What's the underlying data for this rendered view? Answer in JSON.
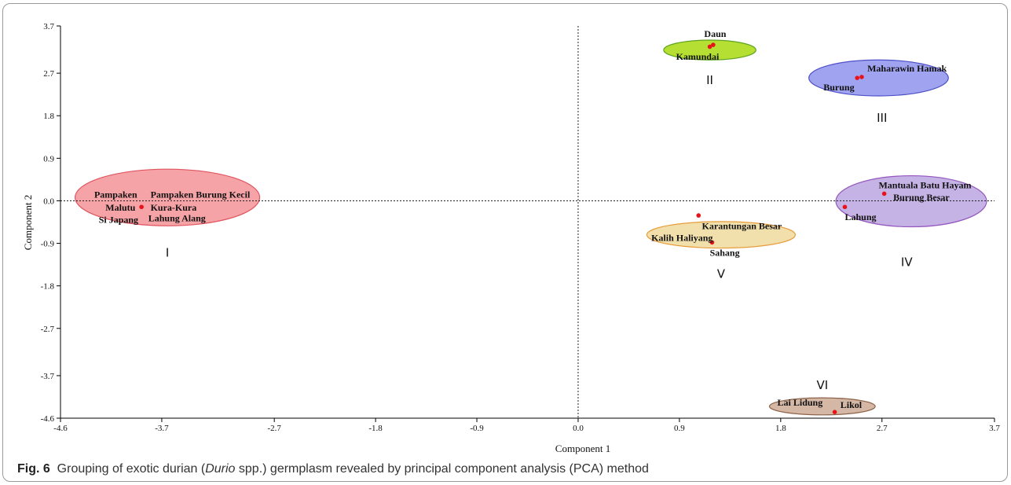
{
  "caption": {
    "fig": "Fig. 6",
    "text_before": "Grouping of exotic durian (",
    "italic": "Durio",
    "text_after": " spp.) germplasm revealed by principal component analysis (PCA) method"
  },
  "chart_data": {
    "type": "scatter",
    "xlabel": "Component 1",
    "ylabel": "Component 2",
    "xlim": [
      -4.6,
      3.7
    ],
    "ylim": [
      -4.6,
      3.7
    ],
    "x_ticks": [
      "-4.6",
      "-3.7",
      "-2.7",
      "-1.8",
      "-0.9",
      "0.0",
      "0.9",
      "1.8",
      "2.7",
      "3.7"
    ],
    "y_ticks": [
      "3.7",
      "2.7",
      "1.8",
      "0.9",
      "0.0",
      "-0.9",
      "-1.8",
      "-2.7",
      "-3.7",
      "-4.6"
    ],
    "zero_lines": "dashed",
    "point_color": "#e8121a",
    "groups": [
      {
        "name": "I",
        "center": [
          -3.65,
          0.07
        ],
        "radius": [
          0.82,
          0.6
        ],
        "fill": "#f5a3a6",
        "stroke": "#e05560",
        "label_at": [
          -3.65,
          -1.1
        ]
      },
      {
        "name": "II",
        "center": [
          1.17,
          3.19
        ],
        "radius": [
          0.41,
          0.21
        ],
        "fill": "#b5e033",
        "stroke": "#5fa320",
        "label_at": [
          1.17,
          2.55
        ]
      },
      {
        "name": "III",
        "center": [
          2.67,
          2.6
        ],
        "radius": [
          0.62,
          0.38
        ],
        "fill": "#a0a3f0",
        "stroke": "#4e50c8",
        "label_at": [
          2.7,
          1.75
        ]
      },
      {
        "name": "IV",
        "center": [
          2.96,
          -0.01
        ],
        "radius": [
          0.67,
          0.54
        ],
        "fill": "#c5b3e5",
        "stroke": "#9455bd",
        "label_at": [
          2.92,
          -1.3
        ]
      },
      {
        "name": "V",
        "center": [
          1.27,
          -0.72
        ],
        "radius": [
          0.66,
          0.28
        ],
        "fill": "#f1e0ab",
        "stroke": "#e79d3c",
        "label_at": [
          1.27,
          -1.55
        ]
      },
      {
        "name": "VI",
        "center": [
          2.17,
          -4.35
        ],
        "radius": [
          0.47,
          0.18
        ],
        "fill": "#d5b7a6",
        "stroke": "#8c6249",
        "label_at": [
          2.17,
          -3.9
        ]
      }
    ],
    "points": [
      {
        "x": -3.88,
        "y": -0.13
      },
      {
        "x": 1.2,
        "y": 3.3
      },
      {
        "x": 1.17,
        "y": 3.26
      },
      {
        "x": 2.48,
        "y": 2.6
      },
      {
        "x": 2.52,
        "y": 2.62
      },
      {
        "x": 2.72,
        "y": 0.15
      },
      {
        "x": 2.37,
        "y": -0.13
      },
      {
        "x": 1.07,
        "y": -0.31
      },
      {
        "x": 1.19,
        "y": -0.88
      },
      {
        "x": 2.28,
        "y": -4.47
      }
    ],
    "labels": [
      {
        "text": "Pampaken",
        "x": -4.3,
        "y": 0.13,
        "anchor": "start"
      },
      {
        "text": "Pampaken Burung Kecil",
        "x": -3.8,
        "y": 0.13,
        "anchor": "start"
      },
      {
        "text": "Malutu",
        "x": -4.2,
        "y": -0.14,
        "anchor": "start"
      },
      {
        "text": "Kura-Kura",
        "x": -3.8,
        "y": -0.14,
        "anchor": "start"
      },
      {
        "text": "Si Japang",
        "x": -4.26,
        "y": -0.4,
        "anchor": "start"
      },
      {
        "text": "Lahung Alang",
        "x": -3.82,
        "y": -0.37,
        "anchor": "start"
      },
      {
        "text": "Daun",
        "x": 1.12,
        "y": 3.53,
        "anchor": "start"
      },
      {
        "text": "Kamundai",
        "x": 0.87,
        "y": 3.05,
        "anchor": "start"
      },
      {
        "text": "Maharawin Hamak",
        "x": 2.57,
        "y": 2.8,
        "anchor": "start"
      },
      {
        "text": "Burung",
        "x": 2.18,
        "y": 2.4,
        "anchor": "start"
      },
      {
        "text": "Mantuala Batu Hayam",
        "x": 2.67,
        "y": 0.33,
        "anchor": "start"
      },
      {
        "text": "Burung Besar",
        "x": 2.8,
        "y": 0.07,
        "anchor": "start"
      },
      {
        "text": "Lahung",
        "x": 2.37,
        "y": -0.34,
        "anchor": "start"
      },
      {
        "text": "Karantungan Besar",
        "x": 1.1,
        "y": -0.53,
        "anchor": "start"
      },
      {
        "text": "Kalih Haliyang",
        "x": 0.65,
        "y": -0.78,
        "anchor": "start"
      },
      {
        "text": "Sahang",
        "x": 1.17,
        "y": -1.1,
        "anchor": "start"
      },
      {
        "text": "Lai Lidung",
        "x": 1.77,
        "y": -4.27,
        "anchor": "start"
      },
      {
        "text": "Likol",
        "x": 2.33,
        "y": -4.32,
        "anchor": "start"
      }
    ]
  }
}
